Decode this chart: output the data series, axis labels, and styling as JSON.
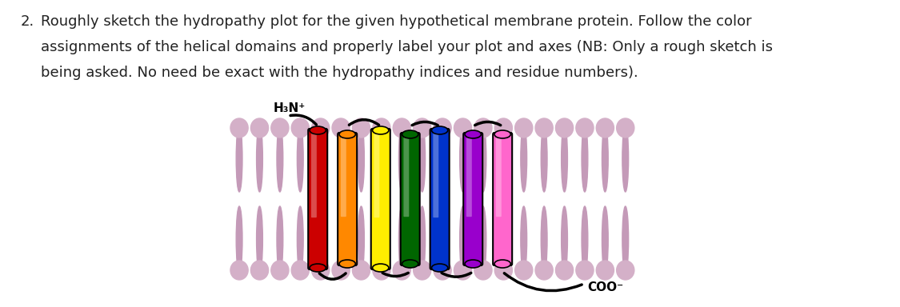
{
  "question_number": "2.",
  "question_text_line1": "Roughly sketch the hydropathy plot for the given hypothetical membrane protein. Follow the color",
  "question_text_line2": "assignments of the helical domains and properly label your plot and axes (NB: Only a rough sketch is",
  "question_text_line3": "being asked. No need be exact with the hydropathy indices and residue numbers).",
  "background_color": "#ffffff",
  "membrane_color": "#d4b0c8",
  "membrane_color_dark": "#c49ab8",
  "helix_colors": [
    "#cc0000",
    "#ff8800",
    "#ffee00",
    "#006600",
    "#0033cc",
    "#9900cc",
    "#ff66cc"
  ],
  "n_terminus_label": "H₃N⁺",
  "c_terminus_label": "COO⁻",
  "text_color": "#222222",
  "font_size": 13
}
